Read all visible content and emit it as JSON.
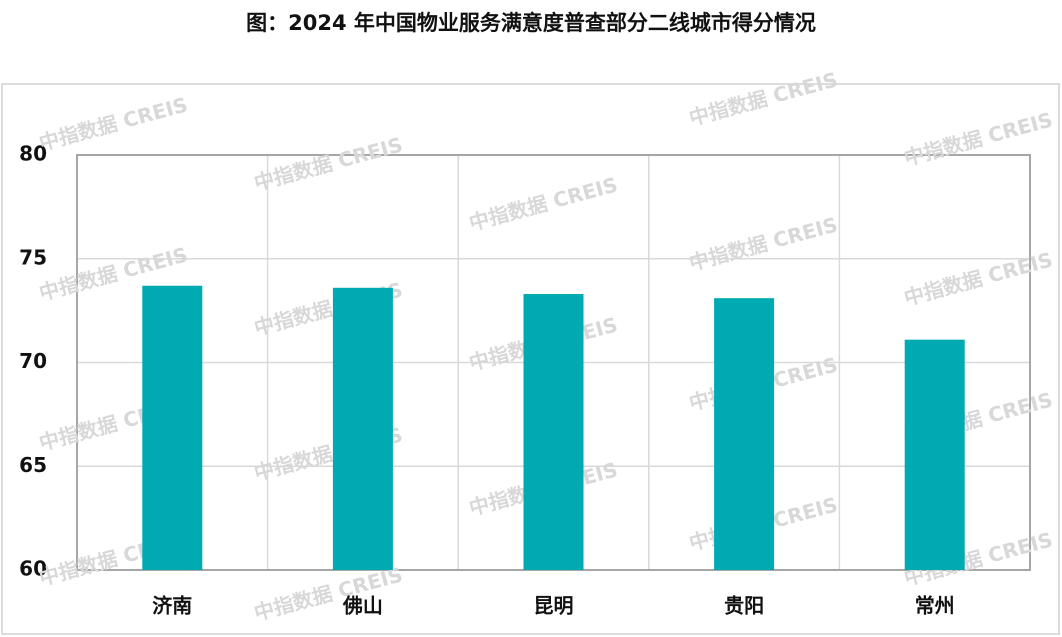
{
  "chart_data": {
    "type": "bar",
    "title": "图：2024 年中国物业服务满意度普查部分二线城市得分情况",
    "categories": [
      "济南",
      "佛山",
      "昆明",
      "贵阳",
      "常州"
    ],
    "values": [
      73.7,
      73.6,
      73.3,
      73.1,
      71.1
    ],
    "color": "#00aab3",
    "ylim": [
      60,
      80
    ],
    "yticks": [
      60,
      65,
      70,
      75,
      80
    ],
    "grid": true,
    "watermark": "中指数据 CREIS"
  }
}
